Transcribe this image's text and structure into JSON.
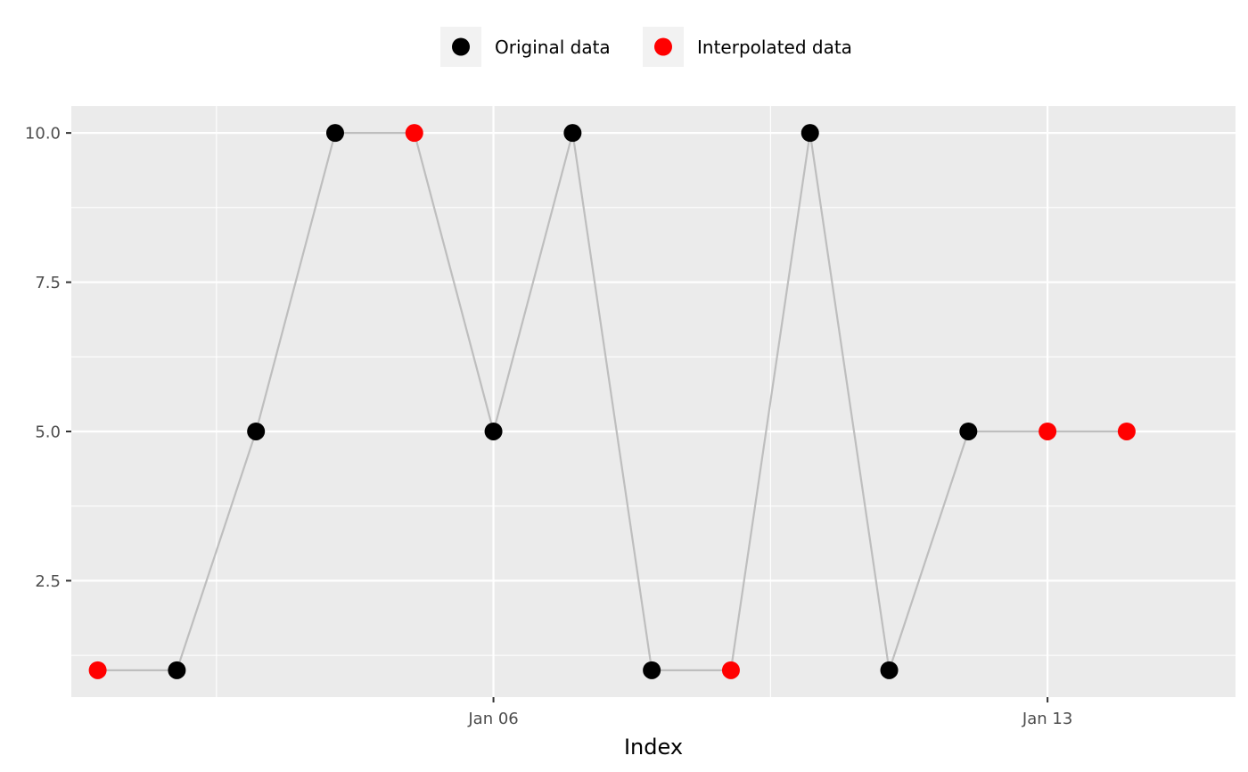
{
  "chart_data": {
    "type": "line",
    "xlabel": "Index",
    "ylabel": "",
    "x_ticks": [
      {
        "date": "2024-01-06",
        "label": "Jan 06"
      },
      {
        "date": "2024-01-13",
        "label": "Jan 13"
      }
    ],
    "y_ticks": [
      {
        "value": 2.5,
        "label": "2.5"
      },
      {
        "value": 5.0,
        "label": "5.0"
      },
      {
        "value": 7.5,
        "label": "7.5"
      },
      {
        "value": 10.0,
        "label": "10.0"
      }
    ],
    "ylim": [
      0.55,
      10.45
    ],
    "xlim": [
      "2023-12-31T16:00",
      "2024-01-15T09:00"
    ],
    "grid": true,
    "legend_position": "top",
    "legend": [
      {
        "label": "Original data",
        "color": "#000000"
      },
      {
        "label": "Interpolated data",
        "color": "#ff0000"
      }
    ],
    "line_color": "#bebebe",
    "panel_background": "#ebebeb",
    "points": [
      {
        "x": "2024-01-01",
        "y": 1,
        "kind": "interpolated"
      },
      {
        "x": "2024-01-02",
        "y": 1,
        "kind": "original"
      },
      {
        "x": "2024-01-03",
        "y": 5,
        "kind": "original"
      },
      {
        "x": "2024-01-04",
        "y": 10,
        "kind": "original"
      },
      {
        "x": "2024-01-05",
        "y": 10,
        "kind": "interpolated"
      },
      {
        "x": "2024-01-06",
        "y": 5,
        "kind": "original"
      },
      {
        "x": "2024-01-07",
        "y": 10,
        "kind": "original"
      },
      {
        "x": "2024-01-08",
        "y": 1,
        "kind": "original"
      },
      {
        "x": "2024-01-09",
        "y": 1,
        "kind": "interpolated"
      },
      {
        "x": "2024-01-10",
        "y": 10,
        "kind": "original"
      },
      {
        "x": "2024-01-11",
        "y": 1,
        "kind": "original"
      },
      {
        "x": "2024-01-12",
        "y": 5,
        "kind": "original"
      },
      {
        "x": "2024-01-13",
        "y": 5,
        "kind": "interpolated"
      },
      {
        "x": "2024-01-14",
        "y": 5,
        "kind": "interpolated"
      }
    ]
  }
}
